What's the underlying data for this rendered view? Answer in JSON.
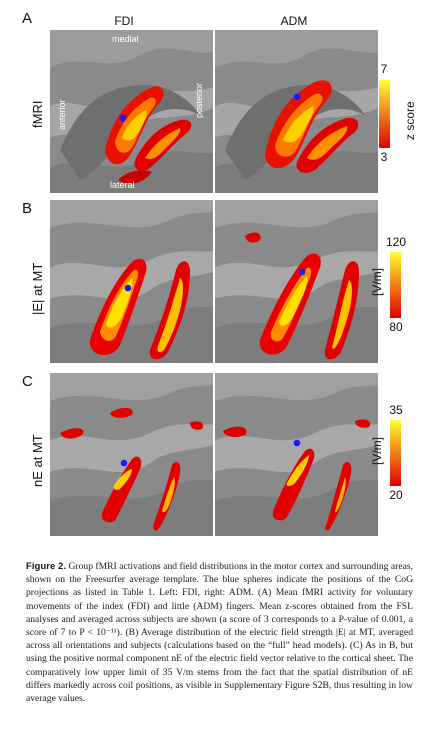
{
  "panels": {
    "a_letter": "A",
    "b_letter": "B",
    "c_letter": "C"
  },
  "columns": {
    "left": "FDI",
    "right": "ADM"
  },
  "rows": {
    "a_label": "fMRI",
    "b_label": "|E| at MT",
    "c_label": "nE at MT"
  },
  "orientation_labels": {
    "medial": "medial",
    "lateral": "lateral",
    "anterior": "anterior",
    "posterior": "posterior"
  },
  "colorbars": {
    "a": {
      "top": "7",
      "bottom": "3",
      "unit": "z score",
      "colors": [
        "#ffff33",
        "#e00000"
      ]
    },
    "b": {
      "top": "120",
      "bottom": "80",
      "unit": "[V/m]",
      "colors": [
        "#ffff33",
        "#e00000"
      ]
    },
    "c": {
      "top": "35",
      "bottom": "20",
      "unit": "[V/m]",
      "colors": [
        "#ffff33",
        "#e00000"
      ]
    }
  },
  "marker_color": "#1a1aff",
  "caption": {
    "figure_label": "Figure 2.",
    "text": " Group fMRI activations and field distributions in the motor cortex and surrounding areas, shown on the Freesurfer average template. The blue spheres indicate the positions of the CoG projections as listed in Table 1. Left: FDI, right: ADM. (A) Mean fMRI activity for voluntary movements of the index (FDI) and little (ADM) fingers. Mean z-scores obtained from the FSL analyses and averaged across subjects are shown (a score of 3 corresponds to a P-value of 0.001, a score of 7 to P < 10⁻¹¹). (B) Average distribution of the electric field strength |E| at MT, averaged across all orientations and subjects (calculations based on the “full” head models). (C) As in B, but using the positive normal component nE of the electric field vector relative to the cortical sheet. The comparatively low upper limit of 35 V/m stems from the fact that the spatial distribution of nE differs markedly across coil positions, as visible in Supplementary Figure S2B, thus resulting in low average values."
  }
}
